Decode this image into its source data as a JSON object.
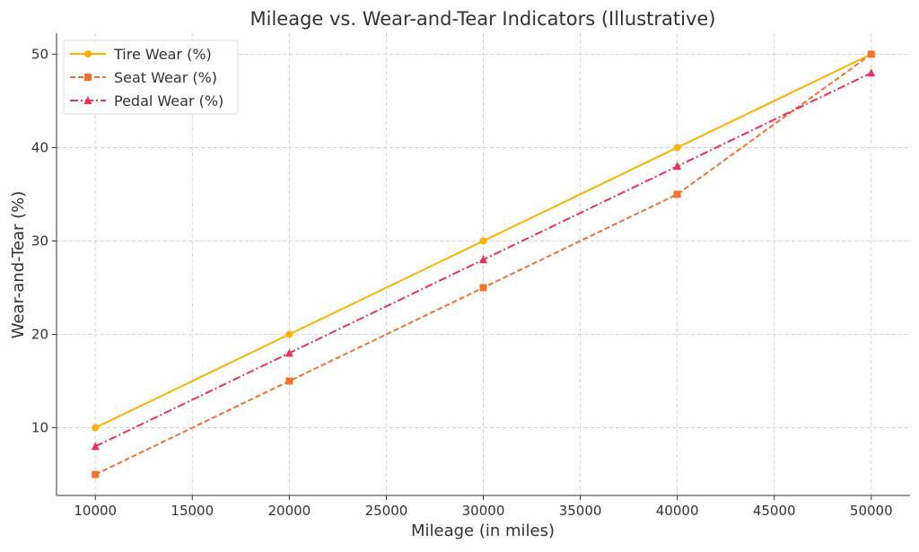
{
  "chart_data": {
    "type": "line",
    "title": "Mileage vs. Wear-and-Tear Indicators (Illustrative)",
    "xlabel": "Mileage (in miles)",
    "ylabel": "Wear-and-Tear (%)",
    "x": [
      10000,
      20000,
      30000,
      40000,
      50000
    ],
    "xlim": [
      8000,
      52000
    ],
    "ylim": [
      2.75,
      52.25
    ],
    "xticks": [
      10000,
      15000,
      20000,
      25000,
      30000,
      35000,
      40000,
      45000,
      50000
    ],
    "yticks": [
      10,
      20,
      30,
      40,
      50
    ],
    "grid": true,
    "legend_position": "top-left",
    "series": [
      {
        "name": "Tire Wear (%)",
        "values": [
          10,
          20,
          30,
          40,
          50
        ],
        "color": "#FFB000",
        "marker": "circle",
        "dash": "solid"
      },
      {
        "name": "Seat Wear (%)",
        "values": [
          5,
          15,
          25,
          35,
          50
        ],
        "color": "#F5722A",
        "marker": "square",
        "dash": "dashed"
      },
      {
        "name": "Pedal Wear (%)",
        "values": [
          8,
          18,
          28,
          38,
          48
        ],
        "color": "#F0305A",
        "marker": "triangle",
        "dash": "dashdot"
      }
    ]
  }
}
